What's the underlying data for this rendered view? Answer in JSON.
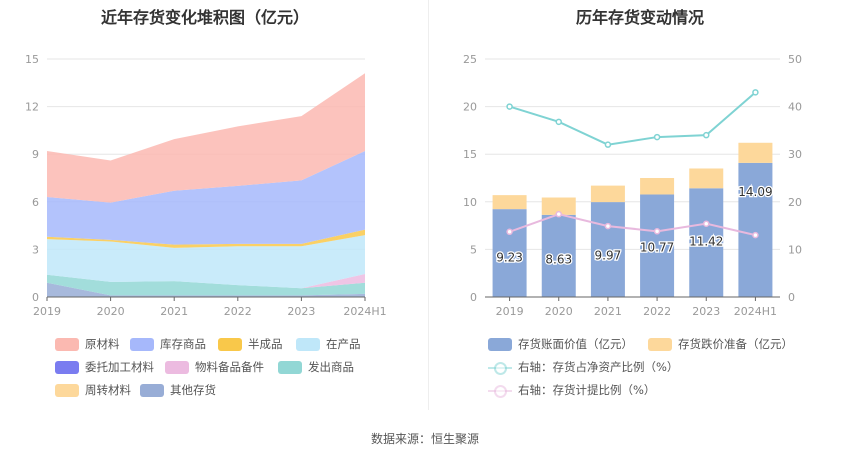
{
  "chart_data": [
    {
      "type": "area",
      "title": "近年存货变化堆积图（亿元）",
      "categories": [
        "2019",
        "2020",
        "2021",
        "2022",
        "2023",
        "2024H1"
      ],
      "ylim": [
        0,
        15
      ],
      "yticks": [
        0,
        3,
        6,
        9,
        12,
        15
      ],
      "grid": true,
      "legend_placement": "bottom",
      "series": [
        {
          "name": "其他存货",
          "color": "#98add6",
          "values": [
            0.9,
            0.1,
            0.1,
            0.1,
            0.1,
            0.2
          ]
        },
        {
          "name": "发出商品",
          "color": "#92d7d5",
          "values": [
            0.5,
            0.85,
            0.9,
            0.65,
            0.45,
            0.7
          ]
        },
        {
          "name": "物料备品备件",
          "color": "#ecbbe0",
          "values": [
            0,
            0,
            0,
            0,
            0,
            0.55
          ]
        },
        {
          "name": "委托加工材料",
          "color": "#7a7cf0",
          "values": [
            0,
            0,
            0,
            0,
            0,
            0
          ]
        },
        {
          "name": "在产品",
          "color": "#bfe7f9",
          "values": [
            2.25,
            2.55,
            2.1,
            2.45,
            2.65,
            2.45
          ]
        },
        {
          "name": "周转材料",
          "color": "#fdd89b",
          "values": [
            0,
            0,
            0,
            0,
            0,
            0
          ]
        },
        {
          "name": "半成品",
          "color": "#f9c84a",
          "values": [
            0.15,
            0.1,
            0.2,
            0.15,
            0.15,
            0.35
          ]
        },
        {
          "name": "库存商品",
          "color": "#a6b8fb",
          "values": [
            2.5,
            2.35,
            3.4,
            3.65,
            4.0,
            4.95
          ]
        },
        {
          "name": "原材料",
          "color": "#fbb9b1",
          "values": [
            2.9,
            2.65,
            3.25,
            3.75,
            4.05,
            4.9
          ]
        }
      ],
      "legend_order": [
        "原材料",
        "库存商品",
        "半成品",
        "在产品",
        "委托加工材料",
        "物料备品备件",
        "发出商品",
        "周转材料",
        "其他存货"
      ]
    },
    {
      "type": "bar",
      "title": "历年存货变动情况",
      "categories": [
        "2019",
        "2020",
        "2021",
        "2022",
        "2023",
        "2024H1"
      ],
      "ylim": [
        0,
        25
      ],
      "yticks": [
        0,
        5,
        10,
        15,
        20,
        25
      ],
      "y2lim": [
        0,
        50
      ],
      "y2ticks": [
        0,
        10,
        20,
        30,
        40,
        50
      ],
      "grid": true,
      "legend_placement": "bottom",
      "series": [
        {
          "name": "存货账面价值（亿元）",
          "type": "bar",
          "stack": "a",
          "color": "#8aa8d8",
          "values": [
            9.23,
            8.63,
            9.97,
            10.77,
            11.42,
            14.09
          ],
          "labels": [
            "9.23",
            "8.63",
            "9.97",
            "10.77",
            "11.42",
            "14.09"
          ]
        },
        {
          "name": "存货跌价准备（亿元）",
          "type": "bar",
          "stack": "a",
          "color": "#fdd89b",
          "values": [
            1.47,
            1.82,
            1.73,
            1.73,
            2.08,
            2.11
          ]
        },
        {
          "name": "右轴：存货占净资产比例（%）",
          "type": "line",
          "axis": "right",
          "color": "#7fd3d3",
          "values": [
            40,
            36.8,
            32,
            33.6,
            34,
            43
          ]
        },
        {
          "name": "右轴：存货计提比例（%）",
          "type": "line",
          "axis": "right",
          "color": "#e8b9de",
          "values": [
            13.7,
            17.4,
            14.9,
            13.8,
            15.4,
            13
          ]
        }
      ]
    }
  ],
  "footer": "数据来源：恒生聚源"
}
